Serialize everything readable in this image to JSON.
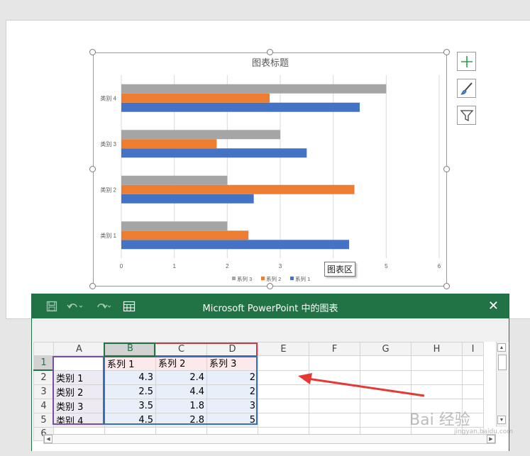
{
  "chart_data": {
    "type": "bar",
    "orientation": "horizontal",
    "title": "图表标题",
    "categories": [
      "类别 1",
      "类别 2",
      "类别 3",
      "类别 4"
    ],
    "series": [
      {
        "name": "系列 1",
        "values": [
          4.3,
          2.5,
          3.5,
          4.5
        ],
        "color": "#4472c4"
      },
      {
        "name": "系列 2",
        "values": [
          2.4,
          4.4,
          1.8,
          2.8
        ],
        "color": "#ed7d31"
      },
      {
        "name": "系列 3",
        "values": [
          2,
          2,
          3,
          5
        ],
        "color": "#a5a5a5"
      }
    ],
    "xlim": [
      0,
      6
    ],
    "x_ticks": [
      "0",
      "1",
      "2",
      "3",
      "4",
      "5",
      "6"
    ],
    "grid": true,
    "legend_position": "bottom"
  },
  "chart_tools": [
    {
      "name": "chart-elements",
      "icon": "plus-icon"
    },
    {
      "name": "chart-styles",
      "icon": "brush-icon"
    },
    {
      "name": "chart-filters",
      "icon": "filter-icon"
    }
  ],
  "tooltip": {
    "text": "图表区"
  },
  "excel": {
    "title": "Microsoft PowerPoint 中的图表",
    "close_icon": "close-icon",
    "columns": [
      "A",
      "B",
      "C",
      "D",
      "E",
      "F",
      "G",
      "H",
      "I"
    ],
    "rows": [
      {
        "row": "1",
        "cells": [
          "",
          "系列 1",
          "系列 2",
          "系列 3",
          "",
          "",
          "",
          "",
          ""
        ]
      },
      {
        "row": "2",
        "cells": [
          "类别 1",
          "4.3",
          "2.4",
          "2",
          "",
          "",
          "",
          "",
          ""
        ]
      },
      {
        "row": "3",
        "cells": [
          "类别 2",
          "2.5",
          "4.4",
          "2",
          "",
          "",
          "",
          "",
          ""
        ]
      },
      {
        "row": "4",
        "cells": [
          "类别 3",
          "3.5",
          "1.8",
          "3",
          "",
          "",
          "",
          "",
          ""
        ]
      },
      {
        "row": "5",
        "cells": [
          "类别 4",
          "4.5",
          "2.8",
          "5",
          "",
          "",
          "",
          "",
          ""
        ]
      },
      {
        "row": "6",
        "cells": [
          "",
          "",
          "",
          "",
          "",
          "",
          "",
          "",
          ""
        ]
      }
    ]
  },
  "annotation": {
    "arrow_color": "#e53935"
  },
  "watermark": {
    "text": "Bai 经验",
    "sub": "jingyan.baidu.com"
  }
}
